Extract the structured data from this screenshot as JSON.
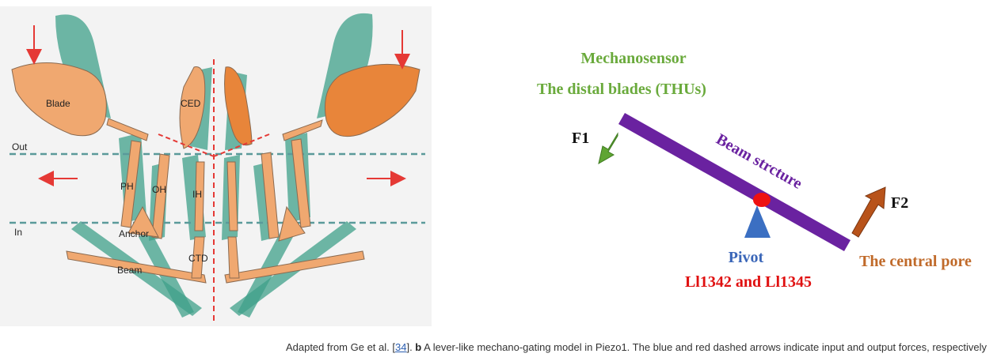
{
  "colors": {
    "panel_bg": "#f3f3f3",
    "blade_orange": "#f0a870",
    "blade_dark_orange": "#e8853a",
    "teal": "#3fa089",
    "red_dashed": "#e53935",
    "membrane": "#5a9a9a",
    "beam_purple": "#6a22a0",
    "pivot_blue": "#3b6fc2",
    "pivot_red_dot": "#ee1111",
    "f1_green": "#5fa533",
    "f2_brown": "#b8531a",
    "mechanosensor_green": "#6aaa3c",
    "central_pore_brown": "#c06a2a",
    "residues_red": "#e01010",
    "pivot_label_blue": "#3a66b8"
  },
  "panel_a": {
    "labels": {
      "blade": "Blade",
      "ced": "CED",
      "out": "Out",
      "in": "In",
      "ph": "PH",
      "oh": "OH",
      "ih": "IH",
      "anchor": "Anchor",
      "beam": "Beam",
      "ctd": "CTD"
    }
  },
  "panel_b": {
    "mechanosensor": "Mechanosensor",
    "distal_blades": "The distal blades (THUs)",
    "f1": "F1",
    "f2": "F2",
    "beam_structure": "Beam strcture",
    "pivot": "Pivot",
    "residues": "Ll1342 and Ll1345",
    "central_pore": "The central pore"
  },
  "caption": {
    "prefix": "Adapted from Ge et al. [",
    "ref": "34",
    "suffix_1": "]. ",
    "bold": "b",
    "text": " A lever-like mechano-gating model in Piezo1. The blue and red dashed arrows indicate input and output forces, respectively"
  }
}
